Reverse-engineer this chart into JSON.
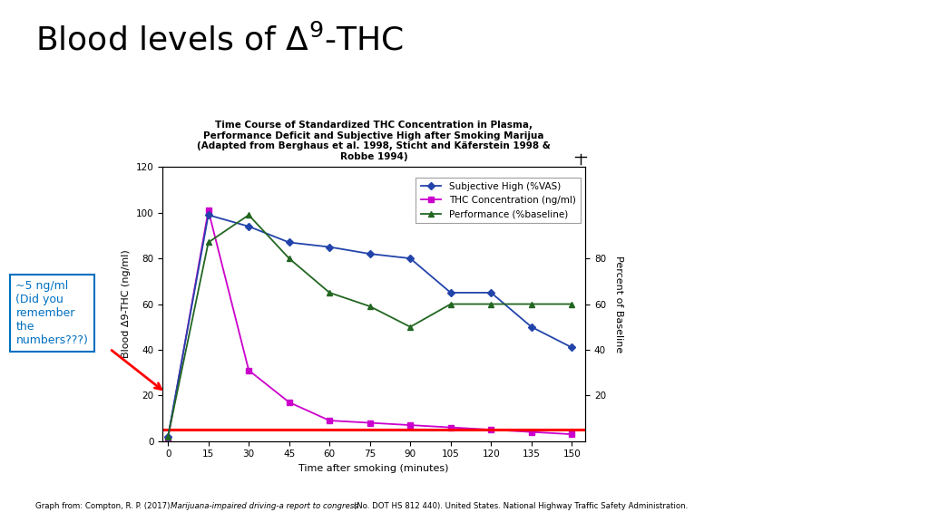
{
  "title_main": "Blood levels of Δ9-THC",
  "chart_title": "Time Course of Standardized THC Concentration in Plasma,\nPerformance Deficit and Subjective High after Smoking Marijua\n(Adapted from Berghaus et al. 1998, Sticht and Käferstein 1998 &\nRobbe 1994)",
  "xlabel": "Time after smoking (minutes)",
  "ylabel_left": "Blood Δ9-THC (ng/ml)",
  "ylabel_right": "Percent of Baseline",
  "time_points": [
    0,
    15,
    30,
    45,
    60,
    75,
    90,
    105,
    120,
    135,
    150
  ],
  "subjective_high": [
    2,
    99,
    94,
    87,
    85,
    82,
    80,
    65,
    65,
    50,
    41
  ],
  "thc_concentration": [
    1,
    101,
    31,
    17,
    9,
    8,
    7,
    6,
    5,
    4,
    3
  ],
  "performance": [
    2,
    87,
    99,
    80,
    65,
    59,
    50,
    60,
    60,
    60,
    60
  ],
  "red_line_y": 5,
  "ylim": [
    0,
    120
  ],
  "yticks_left": [
    0,
    20,
    40,
    60,
    80,
    100,
    120
  ],
  "yticks_right": [
    20,
    40,
    60,
    80
  ],
  "xticks": [
    0,
    15,
    30,
    45,
    60,
    75,
    90,
    105,
    120,
    135,
    150
  ],
  "color_subjective": "#2244aa",
  "color_thc": "#cc00cc",
  "color_performance": "#226622",
  "color_redline": "#ff0000",
  "legend_labels": [
    "Subjective High (%VAS)",
    "THC Concentration (ng/ml)",
    "Performance (%baseline)"
  ],
  "annotation_text": "~5 ng/ml\n(Did you\nremember\nthe\nnumbers???)",
  "annotation_color": "#0070c0",
  "footnote_normal1": "Graph from: Compton, R. P. (2017). ",
  "footnote_italic": "Marijuana-impaired driving-a report to congress",
  "footnote_normal2": " (No. DOT HS 812 440). United States. National Highway Traffic Safety Administration.",
  "background_color": "#ffffff"
}
